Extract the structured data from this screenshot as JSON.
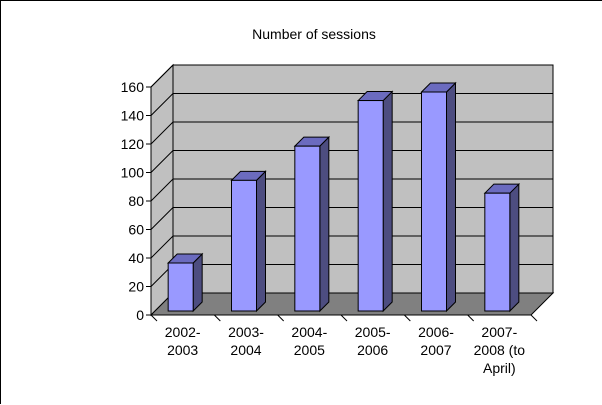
{
  "chart_data": {
    "type": "bar",
    "title": "Number of sessions",
    "categories": [
      [
        "2002-",
        "2003"
      ],
      [
        "2003-",
        "2004"
      ],
      [
        "2004-",
        "2005"
      ],
      [
        "2005-",
        "2006"
      ],
      [
        "2006-",
        "2007"
      ],
      [
        "2007-",
        "2008 (to",
        "April)"
      ]
    ],
    "values": [
      40,
      98,
      122,
      154,
      160,
      89
    ],
    "ylim": [
      0,
      160
    ],
    "yticks": [
      0,
      20,
      40,
      60,
      80,
      100,
      120,
      140,
      160
    ],
    "grid": true,
    "legend": "none",
    "colors": {
      "bar_front": "#9999ff",
      "bar_side": "#4d4d80",
      "bar_top": "#6b6bbf",
      "wall": "#c0c0c0",
      "floor": "#808080",
      "grid": "#000000"
    }
  }
}
